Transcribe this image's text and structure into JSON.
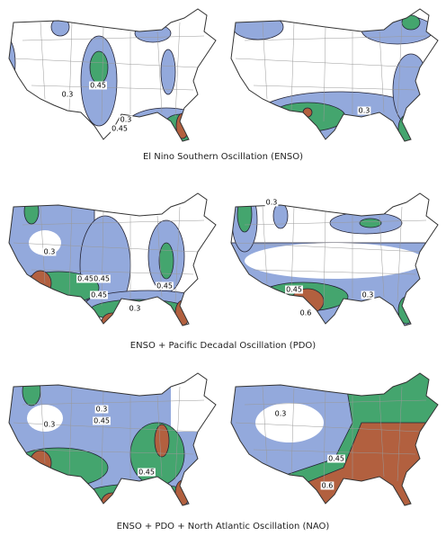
{
  "panels": [
    {
      "labels": [
        "0.3",
        "0.45",
        "0.3",
        "0.45"
      ]
    },
    {
      "labels": [
        "0.3"
      ]
    },
    {
      "labels": [
        "0.3",
        "0.45",
        "0.45",
        "0.45",
        "0.3",
        "0.45"
      ]
    },
    {
      "labels": [
        "0.3",
        "0.45",
        "0.6",
        "0.3"
      ]
    },
    {
      "labels": [
        "0.3",
        "0.45",
        "0.3",
        "0.45"
      ]
    },
    {
      "labels": [
        "0.3",
        "0.45",
        "0.6"
      ]
    }
  ],
  "captions": [
    "El Nino Southern Oscillation (ENSO)",
    "ENSO + Pacific Decadal Oscillation (PDO)",
    "ENSO + PDO + North Atlantic Oscillation (NAO)"
  ]
}
